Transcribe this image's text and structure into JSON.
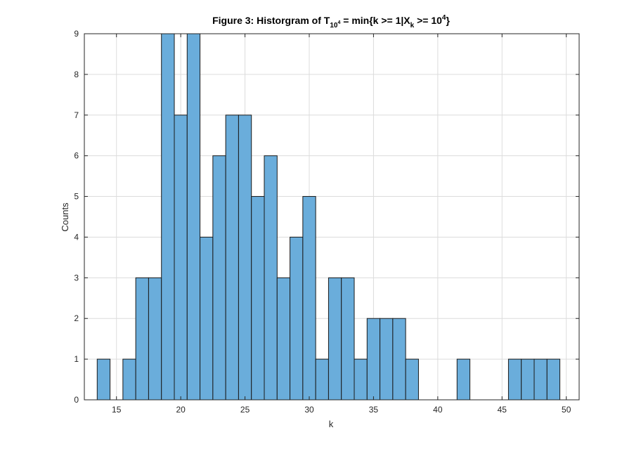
{
  "chart_data": {
    "type": "bar",
    "title_parts": {
      "main": "Figure 3: Historgram of T",
      "sub_base": "10",
      "sub_exp": "4",
      "middle": " = min{k >= 1|X",
      "sub_k": "k",
      "after_k": " >= 10",
      "sup": "4",
      "end": "}"
    },
    "xlabel": "k",
    "ylabel": "Counts",
    "xlim": [
      12.5,
      51
    ],
    "ylim": [
      0,
      9
    ],
    "xticks": [
      15,
      20,
      25,
      30,
      35,
      40,
      45,
      50
    ],
    "yticks": [
      0,
      1,
      2,
      3,
      4,
      5,
      6,
      7,
      8,
      9
    ],
    "grid": true,
    "bin_width": 1,
    "bar_color": "#6aaddb",
    "edge_color": "#1a1a1a",
    "bins": [
      {
        "x": 14,
        "count": 1
      },
      {
        "x": 15,
        "count": 0
      },
      {
        "x": 16,
        "count": 1
      },
      {
        "x": 17,
        "count": 3
      },
      {
        "x": 18,
        "count": 3
      },
      {
        "x": 19,
        "count": 9
      },
      {
        "x": 20,
        "count": 7
      },
      {
        "x": 21,
        "count": 9
      },
      {
        "x": 22,
        "count": 4
      },
      {
        "x": 23,
        "count": 6
      },
      {
        "x": 24,
        "count": 7
      },
      {
        "x": 25,
        "count": 7
      },
      {
        "x": 26,
        "count": 5
      },
      {
        "x": 27,
        "count": 6
      },
      {
        "x": 28,
        "count": 3
      },
      {
        "x": 29,
        "count": 4
      },
      {
        "x": 30,
        "count": 5
      },
      {
        "x": 31,
        "count": 1
      },
      {
        "x": 32,
        "count": 3
      },
      {
        "x": 33,
        "count": 3
      },
      {
        "x": 34,
        "count": 1
      },
      {
        "x": 35,
        "count": 2
      },
      {
        "x": 36,
        "count": 2
      },
      {
        "x": 37,
        "count": 2
      },
      {
        "x": 38,
        "count": 1
      },
      {
        "x": 42,
        "count": 1
      },
      {
        "x": 46,
        "count": 1
      },
      {
        "x": 47,
        "count": 1
      },
      {
        "x": 48,
        "count": 1
      },
      {
        "x": 49,
        "count": 1
      }
    ]
  }
}
